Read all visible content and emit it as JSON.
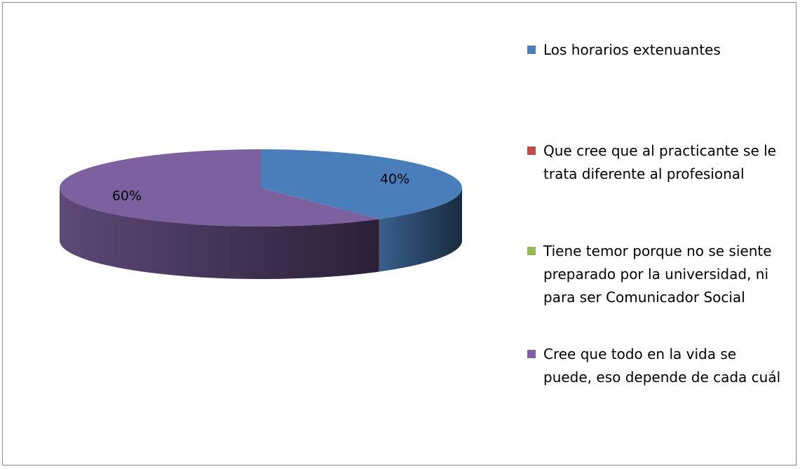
{
  "chart_data": {
    "type": "pie",
    "categories": [
      "Los horarios extenuantes",
      "Que cree que al practicante se le trata diferente al profesional",
      "Tiene temor porque no se siente preparado por la universidad, ni para ser Comunicador Social",
      "Cree que todo en la vida se puede, eso depende de cada cuál"
    ],
    "values": [
      40,
      0,
      0,
      60
    ],
    "value_labels": [
      "40%",
      null,
      null,
      "60%"
    ],
    "colors": [
      "#4a7ebb",
      "#be4b48",
      "#98b954",
      "#7d60a0"
    ],
    "legend": "right"
  }
}
